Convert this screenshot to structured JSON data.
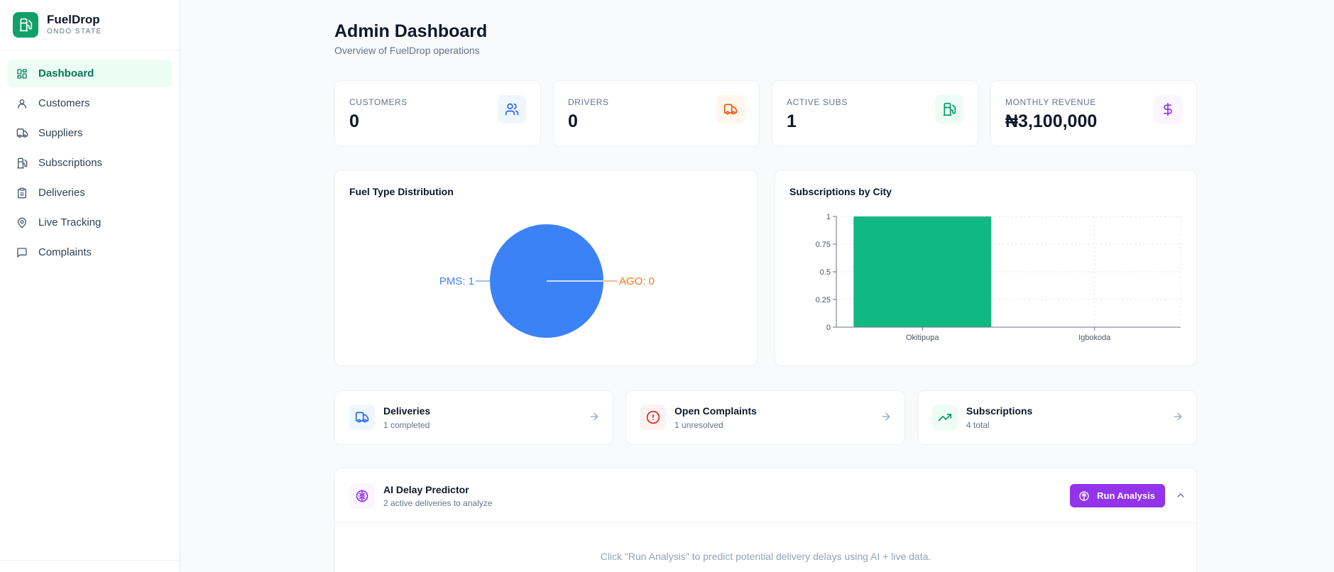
{
  "brand": {
    "name": "FuelDrop",
    "subtitle": "ONDO STATE",
    "accent": "#12a06a"
  },
  "sidebar": {
    "items": [
      {
        "label": "Dashboard",
        "icon": "dashboard-grid-icon",
        "active": true
      },
      {
        "label": "Customers",
        "icon": "user-icon",
        "active": false
      },
      {
        "label": "Suppliers",
        "icon": "truck-icon",
        "active": false
      },
      {
        "label": "Subscriptions",
        "icon": "fuel-pump-icon",
        "active": false
      },
      {
        "label": "Deliveries",
        "icon": "clipboard-icon",
        "active": false
      },
      {
        "label": "Live Tracking",
        "icon": "map-pin-icon",
        "active": false
      },
      {
        "label": "Complaints",
        "icon": "message-square-icon",
        "active": false
      }
    ]
  },
  "header": {
    "title": "Admin Dashboard",
    "subtitle": "Overview of FuelDrop operations"
  },
  "stats": [
    {
      "label": "CUSTOMERS",
      "value": "0",
      "icon": "users-icon",
      "color": "#2563eb"
    },
    {
      "label": "DRIVERS",
      "value": "0",
      "icon": "truck-icon",
      "color": "#ea580c"
    },
    {
      "label": "ACTIVE SUBS",
      "value": "1",
      "icon": "fuel-pump-icon",
      "color": "#059669"
    },
    {
      "label": "MONTHLY REVENUE",
      "value": "₦3,100,000",
      "icon": "dollar-icon",
      "color": "#9333ea"
    }
  ],
  "charts": {
    "fuel": {
      "title": "Fuel Type Distribution"
    },
    "city": {
      "title": "Subscriptions by City"
    }
  },
  "chart_data": [
    {
      "type": "pie",
      "title": "Fuel Type Distribution",
      "slices": [
        {
          "label": "PMS",
          "value": 1,
          "color": "#3b82f6",
          "display": "PMS: 1"
        },
        {
          "label": "AGO",
          "value": 0,
          "color": "#f97316",
          "display": "AGO: 0"
        }
      ]
    },
    {
      "type": "bar",
      "title": "Subscriptions by City",
      "categories": [
        "Okitipupa",
        "Igbokoda"
      ],
      "values": [
        1,
        0
      ],
      "ylim": [
        0,
        1
      ],
      "yticks": [
        "0",
        "0.25",
        "0.5",
        "0.75",
        "1"
      ],
      "grid": true,
      "color": "#10b981"
    }
  ],
  "links": [
    {
      "title": "Deliveries",
      "subtitle": "1 completed",
      "icon": "truck-icon",
      "color": "#2563eb"
    },
    {
      "title": "Open Complaints",
      "subtitle": "1 unresolved",
      "icon": "alert-circle-icon",
      "color": "#dc2626"
    },
    {
      "title": "Subscriptions",
      "subtitle": "4 total",
      "icon": "trending-up-icon",
      "color": "#059669"
    }
  ],
  "ai": {
    "title": "AI Delay Predictor",
    "subtitle": "2 active deliveries to analyze",
    "button": "Run Analysis",
    "hint": "Click \"Run Analysis\" to predict potential delivery delays using AI + live data.",
    "accent": "#9333ea"
  }
}
